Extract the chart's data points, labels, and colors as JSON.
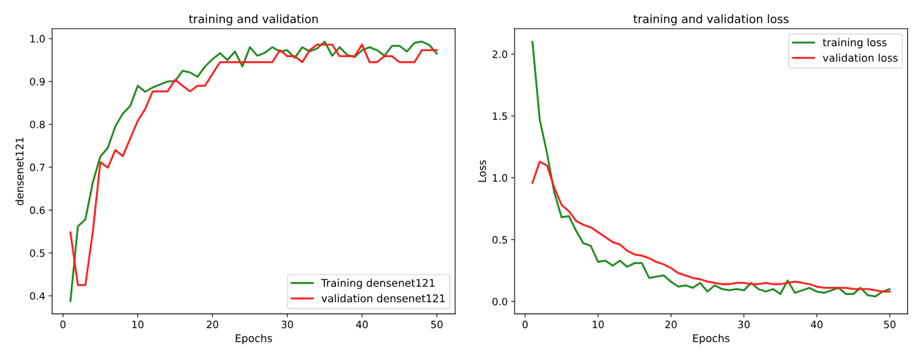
{
  "chart_data": [
    {
      "type": "line",
      "title": "training and validation",
      "xlabel": "Epochs",
      "ylabel": "densenet121",
      "x": [
        1,
        2,
        3,
        4,
        5,
        6,
        7,
        8,
        9,
        10,
        11,
        12,
        13,
        14,
        15,
        16,
        17,
        18,
        19,
        20,
        21,
        22,
        23,
        24,
        25,
        26,
        27,
        28,
        29,
        30,
        31,
        32,
        33,
        34,
        35,
        36,
        37,
        38,
        39,
        40,
        41,
        42,
        43,
        44,
        45,
        46,
        47,
        48,
        49,
        50
      ],
      "series": [
        {
          "name": "Training densenet121",
          "color": "#228b22",
          "values": [
            0.388,
            0.562,
            0.578,
            0.665,
            0.725,
            0.745,
            0.795,
            0.825,
            0.843,
            0.89,
            0.876,
            0.886,
            0.893,
            0.9,
            0.901,
            0.925,
            0.921,
            0.911,
            0.935,
            0.952,
            0.966,
            0.95,
            0.97,
            0.935,
            0.98,
            0.96,
            0.967,
            0.98,
            0.97,
            0.973,
            0.955,
            0.98,
            0.97,
            0.977,
            0.993,
            0.96,
            0.98,
            0.962,
            0.957,
            0.973,
            0.98,
            0.973,
            0.96,
            0.983,
            0.983,
            0.97,
            0.99,
            0.993,
            0.985,
            0.965
          ]
        },
        {
          "name": "validation densenet121",
          "color": "#ff2020",
          "values": [
            0.548,
            0.425,
            0.425,
            0.55,
            0.712,
            0.699,
            0.74,
            0.726,
            0.767,
            0.808,
            0.836,
            0.877,
            0.877,
            0.877,
            0.904,
            0.89,
            0.877,
            0.89,
            0.89,
            0.918,
            0.945,
            0.945,
            0.945,
            0.945,
            0.945,
            0.945,
            0.945,
            0.945,
            0.973,
            0.959,
            0.959,
            0.945,
            0.973,
            0.986,
            0.986,
            0.986,
            0.959,
            0.959,
            0.959,
            0.986,
            0.945,
            0.945,
            0.959,
            0.959,
            0.945,
            0.945,
            0.945,
            0.973,
            0.973,
            0.973
          ]
        }
      ],
      "xlim": [
        -1.45,
        52.45
      ],
      "xticks": [
        0,
        10,
        20,
        30,
        40,
        50
      ],
      "ylim": [
        0.358,
        1.023
      ],
      "yticks": [
        0.4,
        0.5,
        0.6,
        0.7,
        0.8,
        0.9,
        {
          "value": 1,
          "label": "1.0"
        }
      ],
      "legend": "bottom right",
      "grid": false
    },
    {
      "type": "line",
      "title": "training and validation loss",
      "xlabel": "Epochs",
      "ylabel": "Loss",
      "x": [
        1,
        2,
        3,
        4,
        5,
        6,
        7,
        8,
        9,
        10,
        11,
        12,
        13,
        14,
        15,
        16,
        17,
        18,
        19,
        20,
        21,
        22,
        23,
        24,
        25,
        26,
        27,
        28,
        29,
        30,
        31,
        32,
        33,
        34,
        35,
        36,
        37,
        38,
        39,
        40,
        41,
        42,
        43,
        44,
        45,
        46,
        47,
        48,
        49,
        50
      ],
      "series": [
        {
          "name": "training loss",
          "color": "#228b22",
          "values": [
            2.1,
            1.47,
            1.2,
            0.88,
            0.68,
            0.69,
            0.57,
            0.47,
            0.45,
            0.32,
            0.33,
            0.29,
            0.33,
            0.28,
            0.31,
            0.31,
            0.19,
            0.2,
            0.21,
            0.16,
            0.12,
            0.13,
            0.11,
            0.15,
            0.08,
            0.13,
            0.1,
            0.09,
            0.1,
            0.09,
            0.15,
            0.1,
            0.08,
            0.1,
            0.06,
            0.17,
            0.07,
            0.09,
            0.11,
            0.08,
            0.07,
            0.09,
            0.11,
            0.06,
            0.06,
            0.11,
            0.05,
            0.04,
            0.08,
            0.1
          ]
        },
        {
          "name": "validation loss",
          "color": "#ff2020",
          "values": [
            0.96,
            1.13,
            1.1,
            0.92,
            0.78,
            0.73,
            0.65,
            0.62,
            0.6,
            0.56,
            0.52,
            0.48,
            0.46,
            0.41,
            0.38,
            0.37,
            0.35,
            0.32,
            0.3,
            0.27,
            0.23,
            0.21,
            0.19,
            0.18,
            0.16,
            0.15,
            0.14,
            0.14,
            0.15,
            0.15,
            0.14,
            0.14,
            0.15,
            0.14,
            0.14,
            0.15,
            0.16,
            0.15,
            0.14,
            0.12,
            0.11,
            0.11,
            0.11,
            0.11,
            0.1,
            0.1,
            0.1,
            0.09,
            0.08,
            0.08
          ]
        }
      ],
      "xlim": [
        -1.45,
        52.45
      ],
      "xticks": [
        0,
        10,
        20,
        30,
        40,
        50
      ],
      "ylim": [
        -0.1,
        2.205
      ],
      "yticks": [
        {
          "value": 0,
          "label": "0.0"
        },
        0.5,
        {
          "value": 1,
          "label": "1.0"
        },
        1.5,
        {
          "value": 2,
          "label": "2.0"
        }
      ],
      "legend": "top right",
      "grid": false
    }
  ]
}
